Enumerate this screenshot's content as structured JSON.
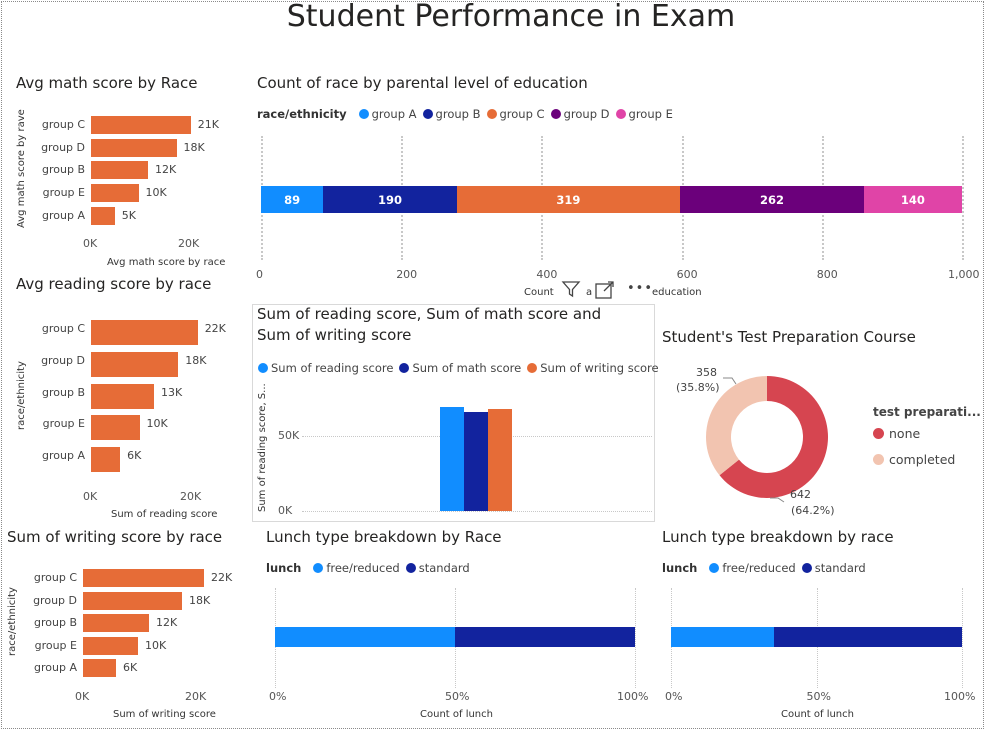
{
  "page_title": "Student Performance in Exam",
  "colors": {
    "orange": "#E66C37",
    "blue_light": "#118DFF",
    "blue_dark": "#12239E",
    "purple": "#6B007B",
    "pink": "#E044A7",
    "donut_none": "#D64550",
    "donut_completed": "#F2C4B0"
  },
  "visual_toolbar": {
    "icons": [
      "filter-icon",
      "focus-mode-icon",
      "more-options-icon"
    ],
    "more_label": "•••"
  },
  "chart_data": [
    {
      "id": "math",
      "type": "bar",
      "title": "Avg math score by Race",
      "ylabel": "Avg math score by rave",
      "xlabel": "Avg math score by race",
      "categories": [
        "group C",
        "group D",
        "group B",
        "group E",
        "group A"
      ],
      "values": [
        21000,
        18000,
        12000,
        10000,
        5000
      ],
      "data_labels": [
        "21K",
        "18K",
        "12K",
        "10K",
        "5K"
      ],
      "xticks": [
        "0K",
        "20K"
      ],
      "xlim": [
        0,
        26000
      ]
    },
    {
      "id": "reading",
      "type": "bar",
      "title": "Avg reading score by race",
      "ylabel": "race/ethnicity",
      "xlabel": "Sum of reading score",
      "categories": [
        "group C",
        "group D",
        "group B",
        "group E",
        "group A"
      ],
      "values": [
        22000,
        18000,
        13000,
        10000,
        6000
      ],
      "data_labels": [
        "22K",
        "18K",
        "13K",
        "10K",
        "6K"
      ],
      "xticks": [
        "0K",
        "20K"
      ],
      "xlim": [
        0,
        26000
      ]
    },
    {
      "id": "writing",
      "type": "bar",
      "title": "Sum of writing score by race",
      "ylabel": "race/ethnicity",
      "xlabel": "Sum of writing score",
      "categories": [
        "group C",
        "group D",
        "group B",
        "group E",
        "group A"
      ],
      "values": [
        22000,
        18000,
        12000,
        10000,
        6000
      ],
      "data_labels": [
        "22K",
        "18K",
        "12K",
        "10K",
        "6K"
      ],
      "xticks": [
        "0K",
        "20K"
      ],
      "xlim": [
        0,
        26000
      ]
    },
    {
      "id": "parental",
      "type": "bar",
      "stacked": true,
      "title": "Count of race by parental level of education",
      "legend_title": "race/ethnicity",
      "xlabel": "Count of race by parental level of education",
      "xlabel_visible": [
        "Count",
        "a",
        "education"
      ],
      "series": [
        {
          "name": "group A",
          "values": [
            89
          ],
          "color": "#118DFF"
        },
        {
          "name": "group B",
          "values": [
            190
          ],
          "color": "#12239E"
        },
        {
          "name": "group C",
          "values": [
            319
          ],
          "color": "#E66C37"
        },
        {
          "name": "group D",
          "values": [
            262
          ],
          "color": "#6B007B"
        },
        {
          "name": "group E",
          "values": [
            140
          ],
          "color": "#E044A7"
        }
      ],
      "xticks": [
        "0",
        "200",
        "400",
        "600",
        "800",
        "1,000"
      ],
      "xlim": [
        0,
        1000
      ]
    },
    {
      "id": "sums",
      "type": "bar",
      "title": "Sum of reading score, Sum of math score and Sum of writing score",
      "title_lines": [
        "Sum of reading score, Sum of math score and",
        "Sum of writing score"
      ],
      "ylabel": "Sum of reading score, S...",
      "series": [
        {
          "name": "Sum of reading score",
          "values": [
            69169
          ],
          "color": "#118DFF"
        },
        {
          "name": "Sum of math score",
          "values": [
            66089
          ],
          "color": "#12239E"
        },
        {
          "name": "Sum of writing score",
          "values": [
            68054
          ],
          "color": "#E66C37"
        }
      ],
      "yticks": [
        "0K",
        "50K"
      ],
      "ylim": [
        0,
        95000
      ]
    },
    {
      "id": "prep",
      "type": "pie",
      "title": "Student's Test Preparation Course",
      "legend_title": "test preparati...",
      "slices": [
        {
          "name": "none",
          "value": 642,
          "label": "642",
          "pct": "(64.2%)",
          "color": "#D64550"
        },
        {
          "name": "completed",
          "value": 358,
          "label": "358",
          "pct": "(35.8%)",
          "color": "#F2C4B0"
        }
      ]
    },
    {
      "id": "lunch1",
      "type": "bar",
      "stacked": true,
      "percent": true,
      "title": "Lunch type breakdown by Race",
      "legend_title": "lunch",
      "xlabel": "Count of lunch",
      "series": [
        {
          "name": "free/reduced",
          "values": [
            50
          ],
          "color": "#118DFF"
        },
        {
          "name": "standard",
          "values": [
            50
          ],
          "color": "#12239E"
        }
      ],
      "xticks": [
        "0%",
        "50%",
        "100%"
      ],
      "xlim": [
        0,
        100
      ]
    },
    {
      "id": "lunch2",
      "type": "bar",
      "stacked": true,
      "percent": true,
      "title": "Lunch type breakdown by race",
      "legend_title": "lunch",
      "xlabel": "Count of lunch",
      "series": [
        {
          "name": "free/reduced",
          "values": [
            35.5
          ],
          "color": "#118DFF"
        },
        {
          "name": "standard",
          "values": [
            64.5
          ],
          "color": "#12239E"
        }
      ],
      "xticks": [
        "0%",
        "50%",
        "100%"
      ],
      "xlim": [
        0,
        100
      ]
    }
  ]
}
